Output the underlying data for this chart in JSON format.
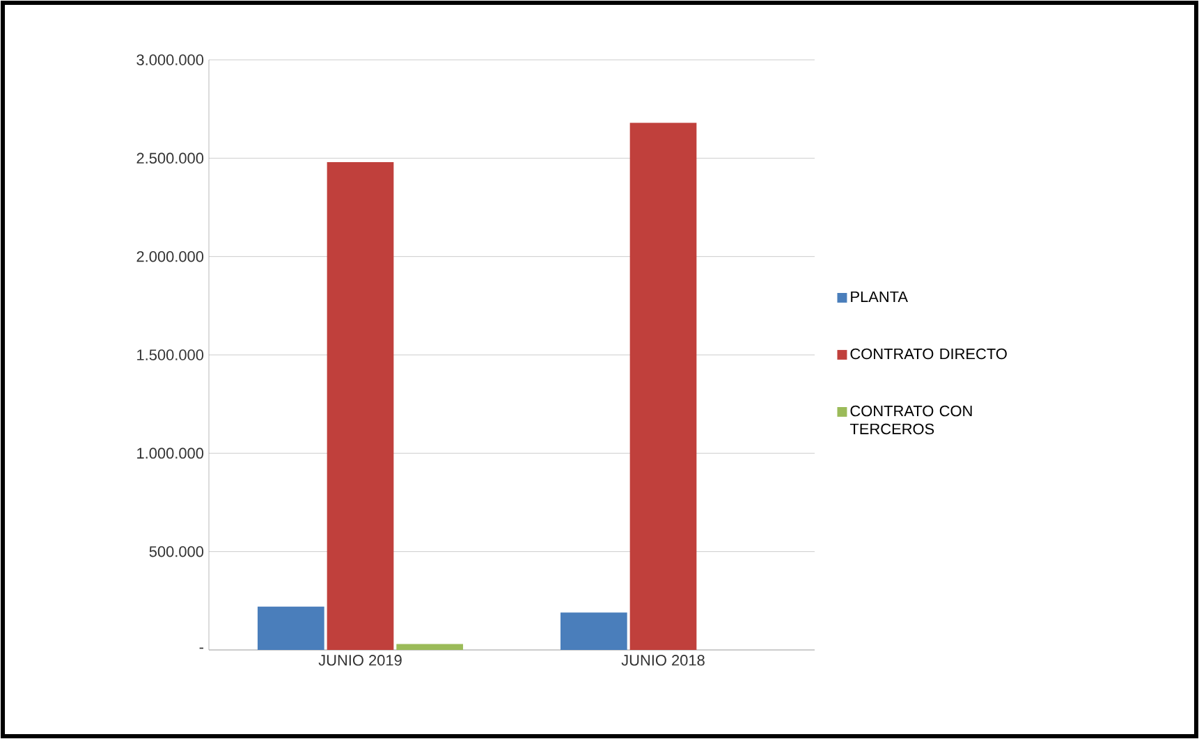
{
  "chart_data": {
    "type": "bar",
    "categories": [
      "JUNIO 2019",
      "JUNIO 2018"
    ],
    "series": [
      {
        "name": "PLANTA",
        "color": "#4a7ebb",
        "values": [
          220000,
          190000
        ]
      },
      {
        "name": "CONTRATO DIRECTO",
        "color": "#c0403c",
        "values": [
          2480000,
          2680000
        ]
      },
      {
        "name": "CONTRATO CON TERCEROS",
        "color": "#9bbb59",
        "values": [
          30000,
          null
        ]
      }
    ],
    "ylim": [
      0,
      3000000
    ],
    "yticks": [
      {
        "value": 0,
        "label": "-"
      },
      {
        "value": 500000,
        "label": "500.000"
      },
      {
        "value": 1000000,
        "label": "1.000.000"
      },
      {
        "value": 1500000,
        "label": "1.500.000"
      },
      {
        "value": 2000000,
        "label": "2.000.000"
      },
      {
        "value": 2500000,
        "label": "2.500.000"
      },
      {
        "value": 3000000,
        "label": "3.000.000"
      }
    ],
    "grid": "y",
    "legend": "right"
  }
}
